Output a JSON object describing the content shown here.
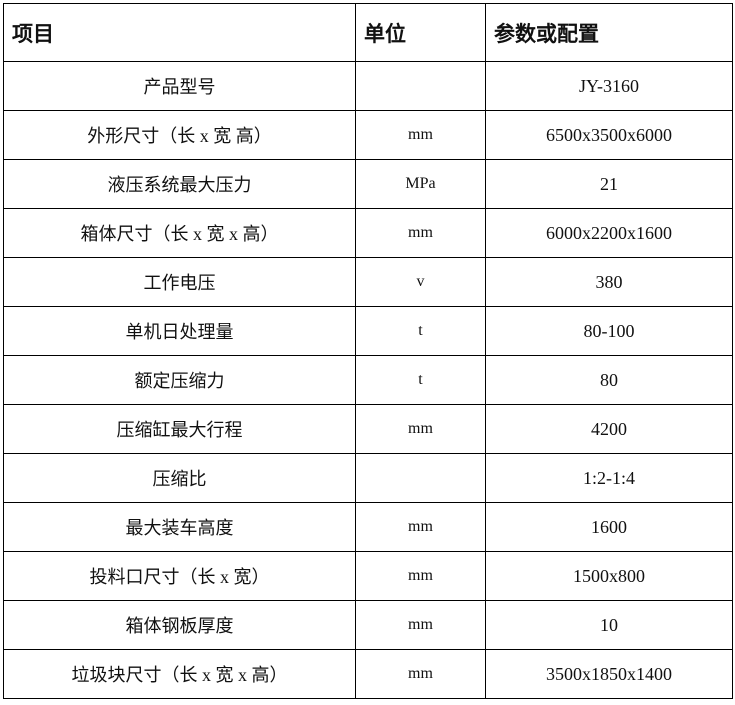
{
  "table": {
    "headers": [
      "项目",
      "单位",
      "参数或配置"
    ],
    "rows": [
      {
        "item": "产品型号",
        "unit": "",
        "value": "JY-3160"
      },
      {
        "item": "外形尺寸（长 x 宽 高）",
        "unit": "mm",
        "value": "6500x3500x6000"
      },
      {
        "item": "液压系统最大压力",
        "unit": "MPa",
        "value": "21"
      },
      {
        "item": "箱体尺寸（长 x 宽 x 高）",
        "unit": "mm",
        "value": "6000x2200x1600"
      },
      {
        "item": "工作电压",
        "unit": "v",
        "value": "380"
      },
      {
        "item": "单机日处理量",
        "unit": "t",
        "value": "80-100"
      },
      {
        "item": "额定压缩力",
        "unit": "t",
        "value": "80"
      },
      {
        "item": "压缩缸最大行程",
        "unit": "mm",
        "value": "4200"
      },
      {
        "item": "压缩比",
        "unit": "",
        "value": "1:2-1:4"
      },
      {
        "item": "最大装车高度",
        "unit": "mm",
        "value": "1600"
      },
      {
        "item": "投料口尺寸（长 x 宽）",
        "unit": "mm",
        "value": "1500x800"
      },
      {
        "item": "箱体钢板厚度",
        "unit": "mm",
        "value": "10"
      },
      {
        "item": "垃圾块尺寸（长 x 宽 x 高）",
        "unit": "mm",
        "value": "3500x1850x1400"
      }
    ]
  }
}
